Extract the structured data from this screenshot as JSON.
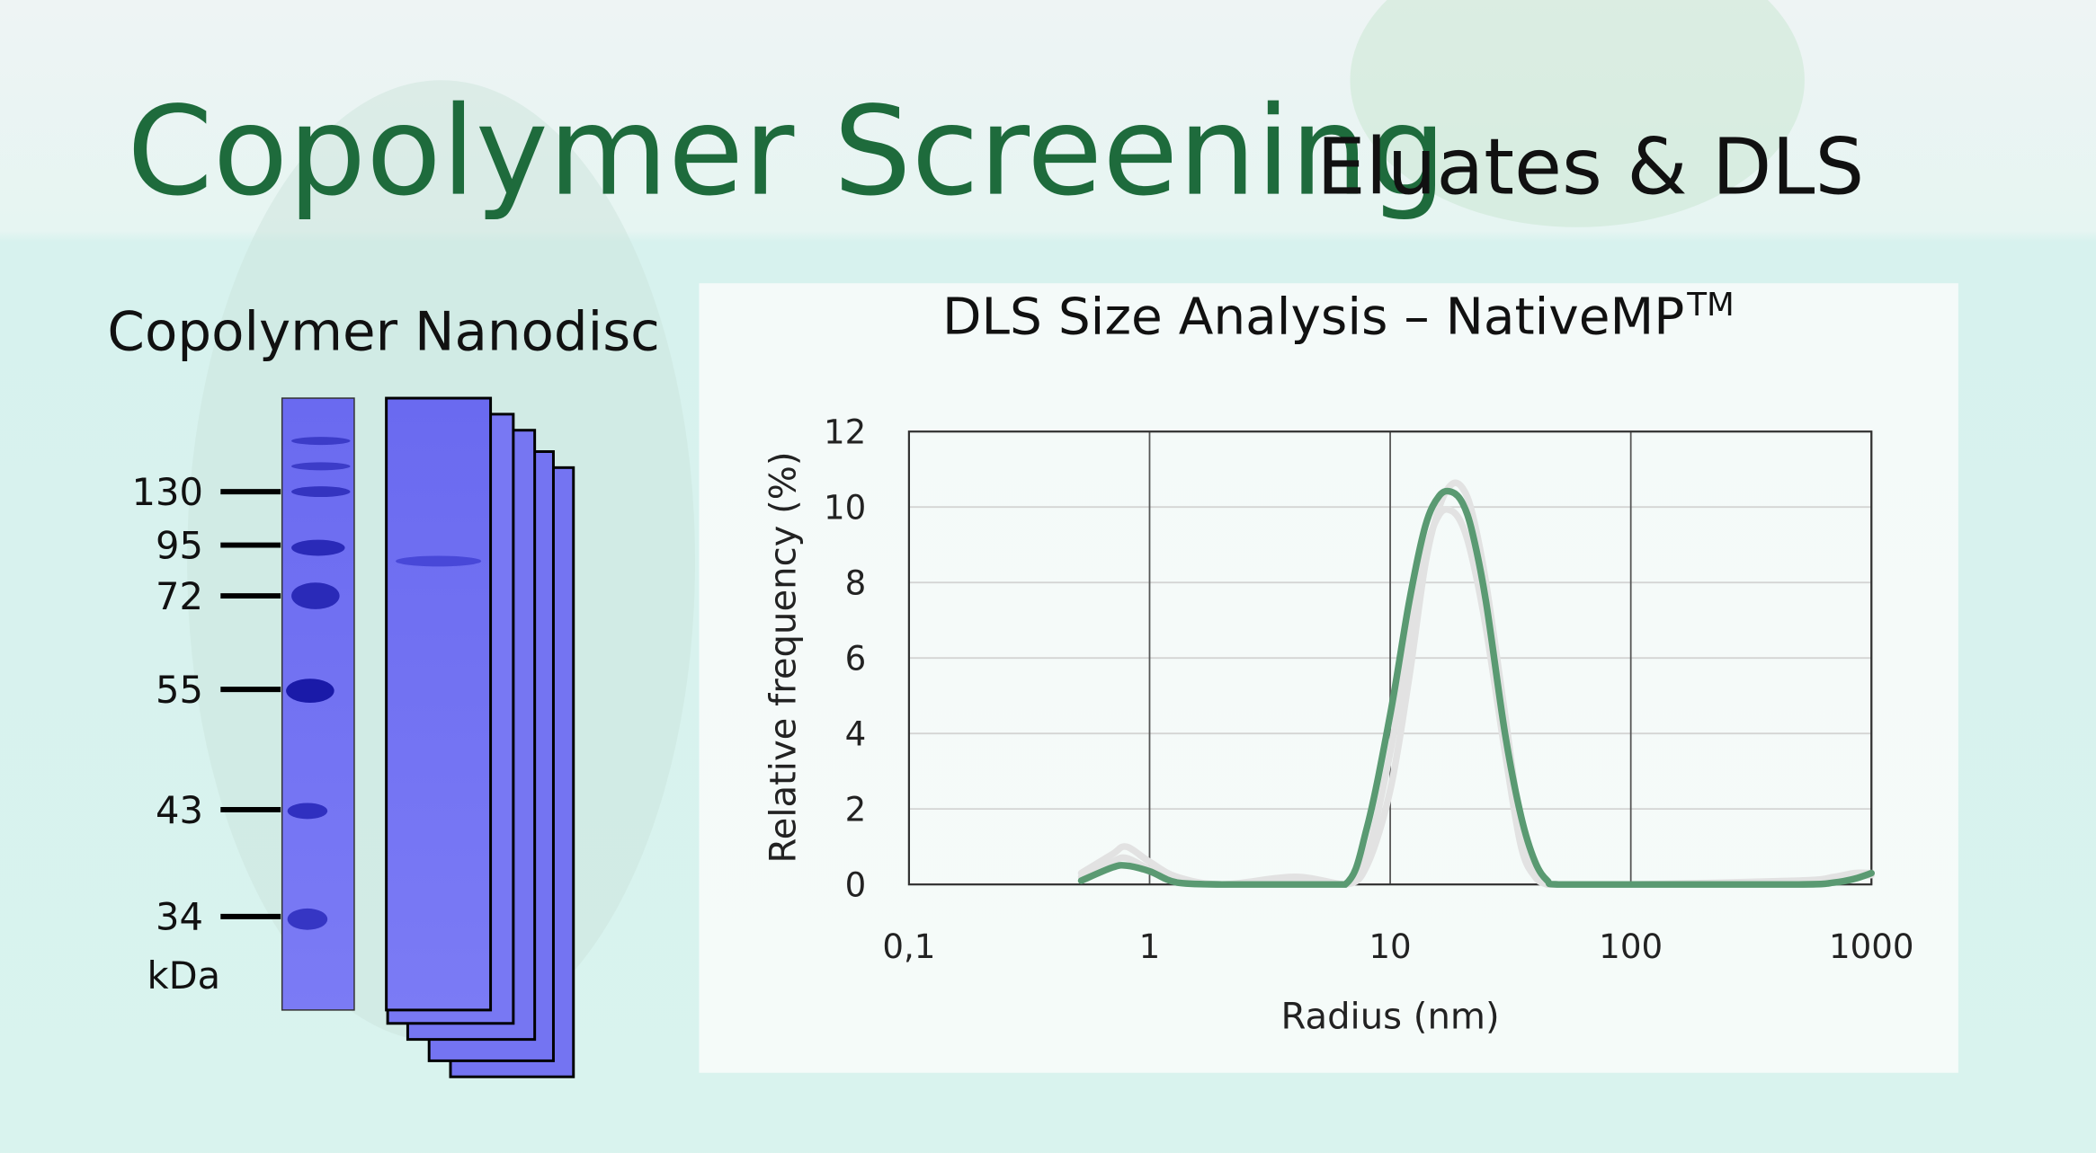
{
  "header": {
    "title": "Copolymer Screening",
    "subtitle": "Eluates & DLS"
  },
  "gel": {
    "title": "Copolymer Nanodisc",
    "markers": [
      130,
      95,
      72,
      55,
      43,
      34
    ],
    "unit": "kDa"
  },
  "chart_data": {
    "type": "line",
    "title": "DLS Size Analysis – NativeMP",
    "title_sup": "TM",
    "x_label": "Radius (nm)",
    "y_label": "Relative frequency (%)",
    "xscale": "log",
    "xlim": [
      0.1,
      1000
    ],
    "xticks": [
      {
        "value": 0.1,
        "label": "0,1"
      },
      1,
      10,
      100,
      1000
    ],
    "ylim": [
      0,
      12
    ],
    "yticks": [
      0,
      2,
      4,
      6,
      8,
      10,
      12
    ],
    "grid": true,
    "x": [
      0.52,
      0.7,
      0.8,
      1,
      1.3,
      2,
      4,
      6.5,
      8,
      10,
      12,
      14,
      16,
      18,
      20,
      22,
      25,
      30,
      35,
      40,
      45,
      50,
      100,
      500,
      700,
      850,
      1000
    ],
    "series": [
      {
        "color": "#e2e2e2",
        "values": [
          0.3,
          0.8,
          1.0,
          0.6,
          0.2,
          0,
          0.2,
          0,
          0.5,
          2.5,
          5.5,
          8.5,
          10,
          10.6,
          10.5,
          9.8,
          8,
          4.5,
          1.5,
          0.3,
          0,
          0,
          0,
          0.1,
          0.2,
          0.3,
          0.3
        ]
      },
      {
        "color": "#e2e2e2",
        "values": [
          0.2,
          0.6,
          0.7,
          0.4,
          0.1,
          0,
          0.1,
          0,
          0.8,
          3.5,
          6.5,
          8.8,
          9.8,
          9.9,
          9.5,
          8.6,
          6.8,
          3.5,
          1,
          0.2,
          0,
          0,
          0,
          0.05,
          0.1,
          0.2,
          0.25
        ]
      },
      {
        "color": "#5a9a72",
        "values": [
          0.1,
          0.45,
          0.5,
          0.35,
          0.05,
          0,
          0,
          0,
          1.5,
          4.5,
          7.5,
          9.5,
          10.3,
          10.4,
          10.1,
          9.3,
          7.5,
          4,
          1.8,
          0.6,
          0.1,
          0,
          0,
          0,
          0.05,
          0.15,
          0.3
        ]
      }
    ]
  }
}
